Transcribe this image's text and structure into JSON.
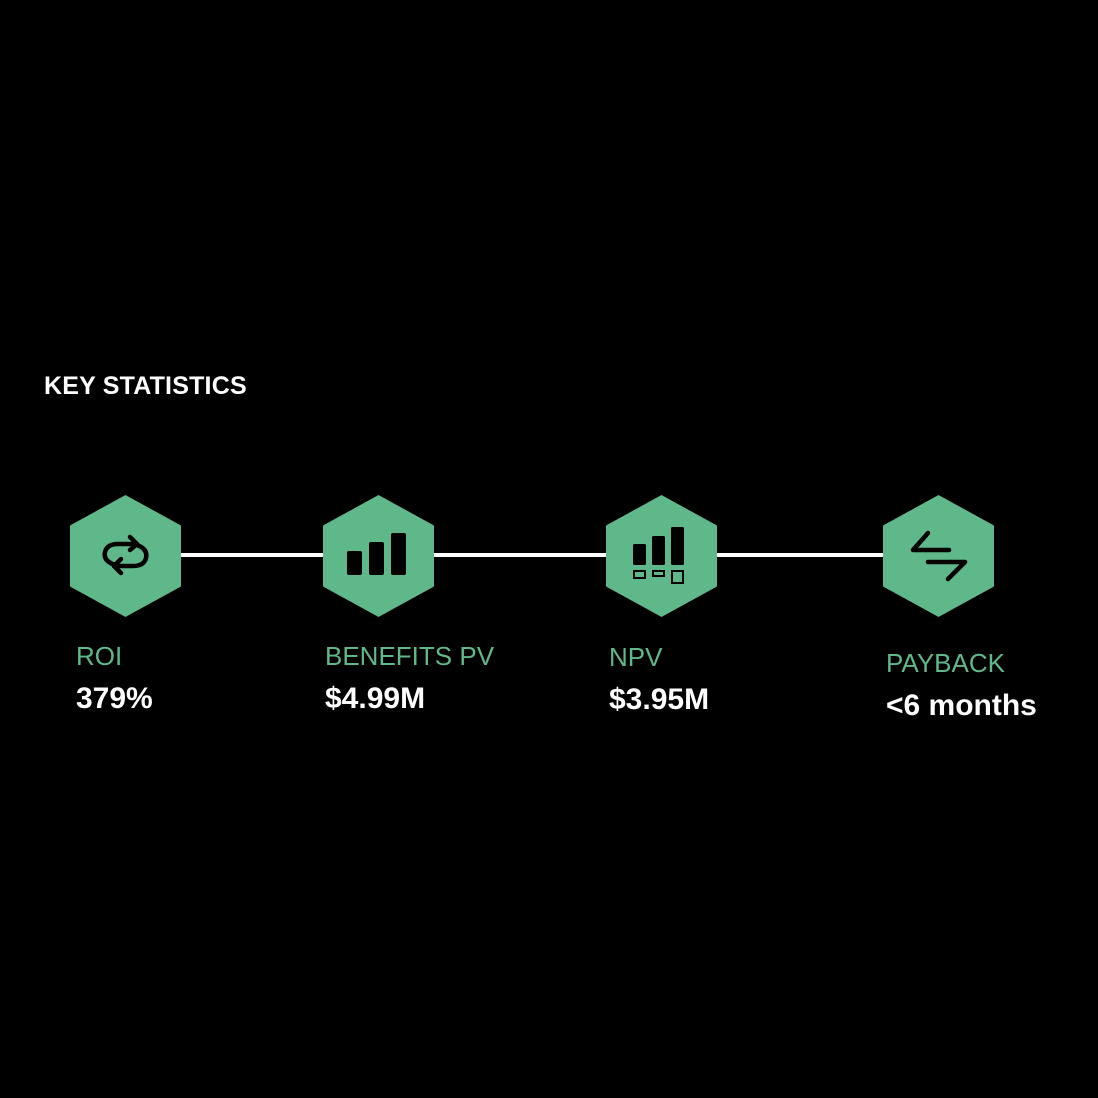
{
  "title": "KEY STATISTICS",
  "accent_color": "#5fb88a",
  "stats": [
    {
      "label": "ROI",
      "value": "379%",
      "icon": "repeat-icon"
    },
    {
      "label": "BENEFITS PV",
      "value": "$4.99M",
      "icon": "bar-chart-icon"
    },
    {
      "label": "NPV",
      "value": "$3.95M",
      "icon": "bar-chart-with-boxes-icon"
    },
    {
      "label": "PAYBACK",
      "value": "<6 months",
      "icon": "exchange-arrows-icon"
    }
  ]
}
